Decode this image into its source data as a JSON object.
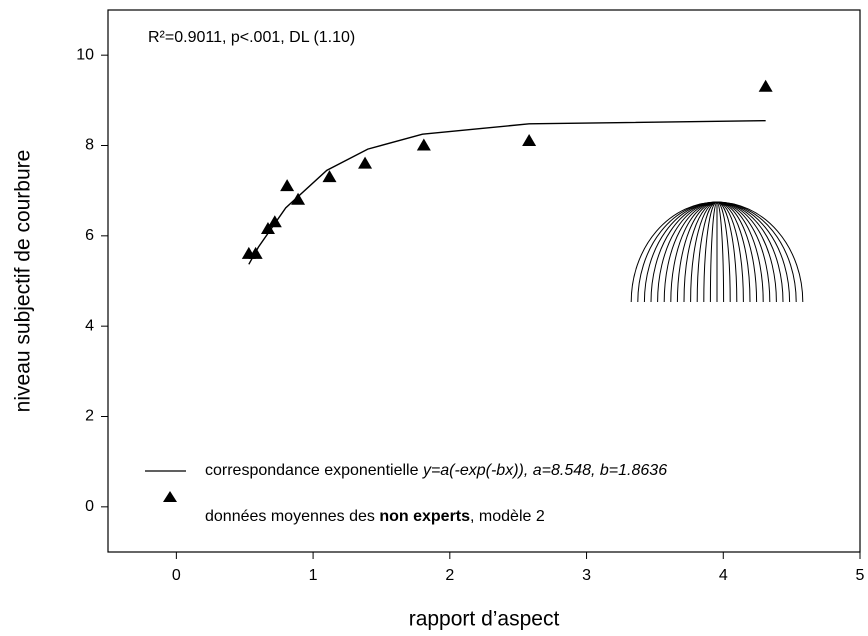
{
  "chart_data": {
    "type": "scatter",
    "annotation": "R²=0.9011, p<.001, DL (1.10)",
    "x_label": "rapport d’aspect",
    "y_label": "niveau subjectif de courbure",
    "xlim": [
      -0.5,
      5
    ],
    "ylim": [
      -1,
      11
    ],
    "xticks": [
      0,
      1,
      2,
      3,
      4,
      5
    ],
    "yticks": [
      0,
      2,
      4,
      6,
      8,
      10
    ],
    "grid": false,
    "series": [
      {
        "type": "line",
        "name": "correspondance exponentielle",
        "equation": "y=a(-exp(-bx)), a=8.548, b=1.8636",
        "color": "#000000",
        "x": [
          0.53,
          0.6,
          0.8,
          1.1,
          1.4,
          1.8,
          2.58,
          4.31
        ],
        "values": [
          5.37,
          5.75,
          6.62,
          7.45,
          7.92,
          8.25,
          8.48,
          8.55
        ]
      },
      {
        "type": "scatter",
        "name": [
          "données moyennes des ",
          "non experts",
          ", modèle 2"
        ],
        "color": "#000000",
        "x": [
          0.53,
          0.58,
          0.67,
          0.72,
          0.81,
          0.89,
          1.12,
          1.38,
          1.81,
          2.58,
          4.31
        ],
        "values": [
          5.6,
          5.6,
          6.15,
          6.3,
          7.1,
          6.8,
          7.3,
          7.6,
          8.0,
          8.1,
          9.3
        ]
      }
    ]
  }
}
